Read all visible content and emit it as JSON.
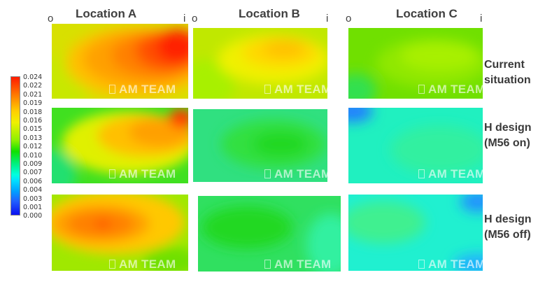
{
  "columns": [
    {
      "title": "Location A",
      "left_label": "o",
      "right_label": "i"
    },
    {
      "title": "Location B",
      "left_label": "o",
      "right_label": "i"
    },
    {
      "title": "Location C",
      "left_label": "o",
      "right_label": "i"
    }
  ],
  "rows": [
    {
      "label_line1": "Current",
      "label_line2": "situation"
    },
    {
      "label_line1": "H design",
      "label_line2": "(M56 on)"
    },
    {
      "label_line1": "H design",
      "label_line2": "(M56 off)"
    }
  ],
  "colorbar": {
    "ticks": [
      "0.024",
      "0.022",
      "0.021",
      "0.019",
      "0.018",
      "0.016",
      "0.015",
      "0.013",
      "0.012",
      "0.010",
      "0.009",
      "0.007",
      "0.006",
      "0.004",
      "0.003",
      "0.001",
      "0.000"
    ],
    "colors": {
      "max": "#ff1a00",
      "high": "#ffd000",
      "mid": "#10e000",
      "low": "#00e0ff",
      "min": "#0a10f0"
    }
  },
  "watermark": "AM TEAM"
}
